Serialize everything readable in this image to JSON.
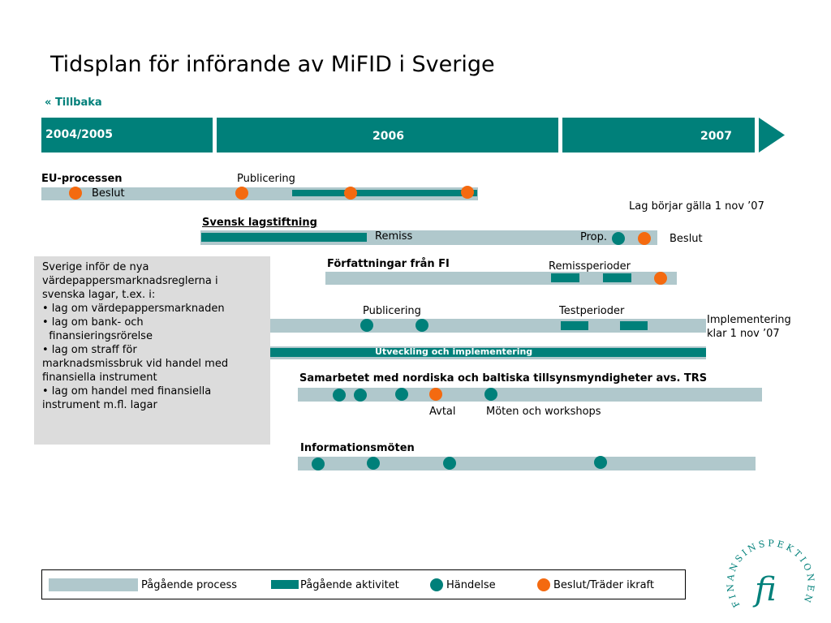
{
  "title": "Tidsplan för införande av MiFID i Sverige",
  "back": {
    "arrow": "«",
    "label": "Tillbaka"
  },
  "years": {
    "y1": "2004/2005",
    "y2": "2006",
    "y3": "2007"
  },
  "eu": {
    "title": "EU-processen",
    "publicering": "Publicering",
    "beslut": "Beslut"
  },
  "lag_note": "Lag börjar gälla 1 nov ’07",
  "svensk": {
    "title": "Svensk lagstiftning",
    "remiss": "Remiss",
    "prop": "Prop.",
    "beslut": "Beslut"
  },
  "forf": {
    "title": "Författningar från FI",
    "remissperioder": "Remissperioder"
  },
  "impl": {
    "publicering": "Publicering",
    "testperioder": "Testperioder",
    "note_line1": "Implementering",
    "note_line2": "klar 1 nov ’07",
    "dev_label": "Utveckling och implementering"
  },
  "info": {
    "lines": [
      "Sverige inför de nya",
      "värdepappersmarknadsreglerna i",
      "svenska lagar, t.ex. i:",
      "• lag om värdepappersmarknaden",
      "• lag om bank- och",
      "  finansieringsrörelse",
      "• lag om straff för",
      "marknadsmissbruk vid handel med",
      "finansiella instrument",
      "• lag om handel med finansiella",
      "instrument m.fl. lagar"
    ]
  },
  "nordic": {
    "title": "Samarbetet med nordiska och baltiska tillsynsmyndigheter avs. TRS",
    "avtal": "Avtal",
    "moten": "Möten och workshops"
  },
  "infomoten": {
    "title": "Informationsmöten"
  },
  "legend": {
    "process": "Pågående process",
    "aktivitet": "Pågående aktivitet",
    "handelse": "Händelse",
    "beslut": "Beslut/Träder ikraft"
  },
  "logo": {
    "text": "FINANSINSPEKTIONEN",
    "mark": "fi"
  },
  "colors": {
    "teal": "#00807a",
    "grey": "#b0c8cc",
    "orange": "#f46a10",
    "box": "#dcdcdc"
  }
}
